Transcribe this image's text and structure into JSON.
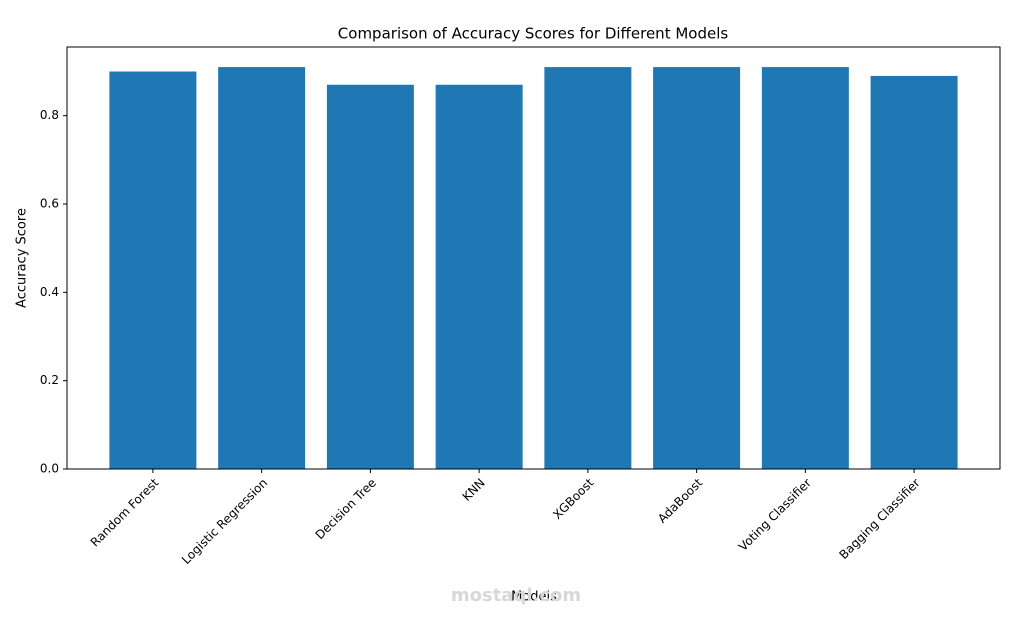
{
  "chart_data": {
    "type": "bar",
    "title": "Comparison of Accuracy Scores for Different Models",
    "x_label": "Models",
    "y_label": "Accuracy Score",
    "categories": [
      "Random Forest",
      "Logistic Regression",
      "Decision Tree",
      "KNN",
      "XGBoost",
      "AdaBoost",
      "Voting Classifier",
      "Bagging Classifier"
    ],
    "values": [
      0.9,
      0.91,
      0.87,
      0.87,
      0.91,
      0.91,
      0.91,
      0.89
    ],
    "color": "#1f77b4",
    "ylim": [
      0,
      0.9555
    ],
    "yticks": [
      {
        "value": 0,
        "label": "0.0"
      },
      0.2,
      0.4,
      0.6,
      0.8
    ],
    "grid": false,
    "watermark": "mostaql.com"
  }
}
